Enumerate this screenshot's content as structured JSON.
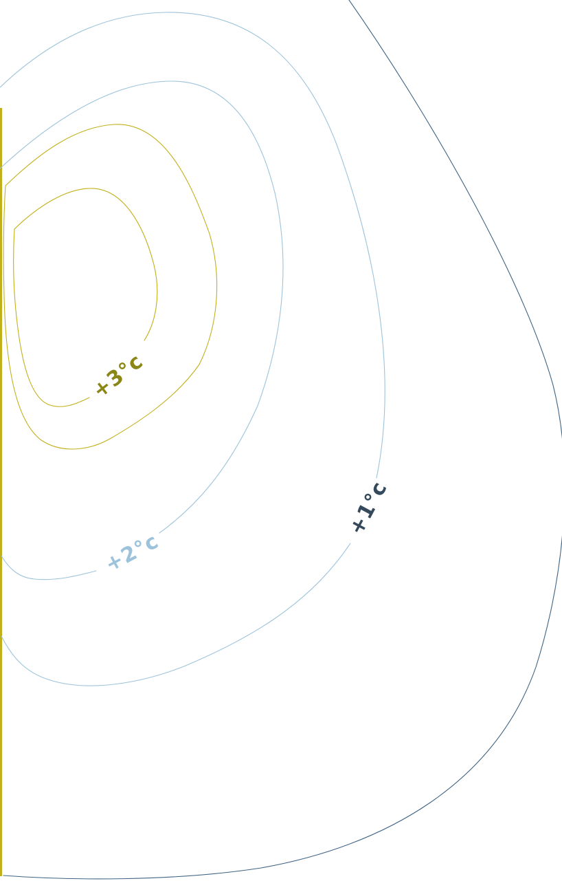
{
  "diagram": {
    "labels": {
      "plus_three": "+3°c",
      "plus_two": "+2°c",
      "plus_one": "+1°c"
    },
    "colors": {
      "plus_three": "#c2b01a",
      "plus_three_text": "#8a8716",
      "plus_two": "#9cc3db",
      "plus_one": "#3e6383",
      "plus_one_text": "#34495c",
      "left_edge_bar": "#c2b01a",
      "background": "#ffffff"
    }
  }
}
